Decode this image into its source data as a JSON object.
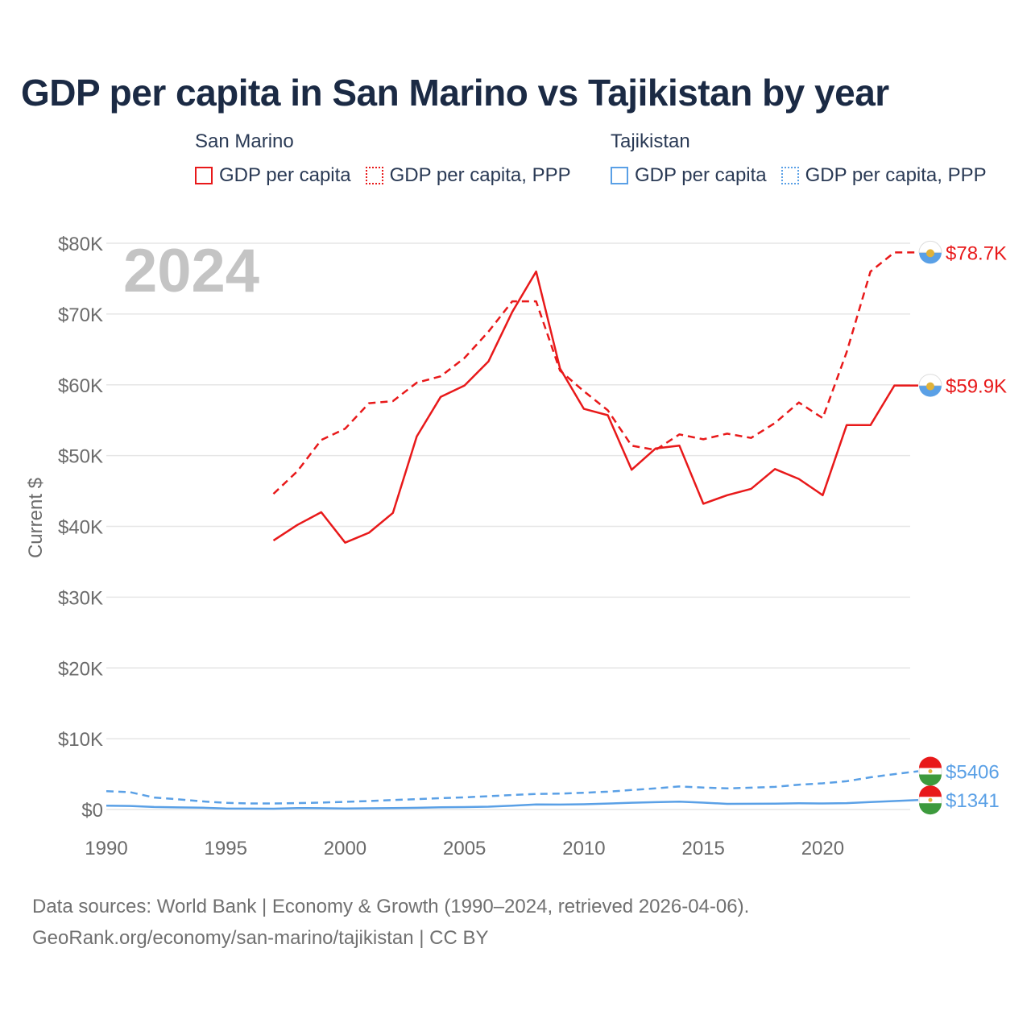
{
  "title": "GDP per capita in San Marino vs Tajikistan by year",
  "legend": {
    "groups": [
      {
        "country": "San Marino",
        "items": [
          "GDP per capita",
          "GDP per capita, PPP"
        ]
      },
      {
        "country": "Tajikistan",
        "items": [
          "GDP per capita",
          "GDP per capita, PPP"
        ]
      }
    ]
  },
  "year_label": "2024",
  "colors": {
    "san_marino": "#e8191a",
    "tajikistan": "#5aa0e6",
    "grid": "#e6e6e6",
    "axis_text": "#6b6b6b"
  },
  "chart_data": {
    "type": "line",
    "ylabel": "Current $",
    "xlabel": "",
    "xlim": [
      1990,
      2024
    ],
    "ylim": [
      0,
      80000
    ],
    "x_ticks": [
      1990,
      1995,
      2000,
      2005,
      2010,
      2015,
      2020
    ],
    "y_ticks": [
      0,
      10000,
      20000,
      30000,
      40000,
      50000,
      60000,
      70000,
      80000
    ],
    "y_tick_labels": [
      "$0",
      "$10K",
      "$20K",
      "$30K",
      "$40K",
      "$50K",
      "$60K",
      "$70K",
      "$80K"
    ],
    "series": [
      {
        "name": "San Marino GDP per capita",
        "country": "San Marino",
        "dash": false,
        "end_label": "$59.9K",
        "x": [
          1997,
          1998,
          1999,
          2000,
          2001,
          2002,
          2003,
          2004,
          2005,
          2006,
          2007,
          2008,
          2009,
          2010,
          2011,
          2012,
          2013,
          2014,
          2015,
          2016,
          2017,
          2018,
          2019,
          2020,
          2021,
          2022,
          2023,
          2024
        ],
        "values": [
          38000,
          40200,
          42000,
          37700,
          39100,
          41900,
          52700,
          58300,
          59900,
          63300,
          70300,
          76000,
          62300,
          56600,
          55700,
          48000,
          51000,
          51400,
          43200,
          44400,
          45300,
          48100,
          46700,
          44400,
          54300,
          54300,
          59900,
          59900
        ]
      },
      {
        "name": "San Marino GDP per capita, PPP",
        "country": "San Marino",
        "dash": true,
        "end_label": "$78.7K",
        "x": [
          1997,
          1998,
          1999,
          2000,
          2001,
          2002,
          2003,
          2004,
          2005,
          2006,
          2007,
          2008,
          2009,
          2010,
          2011,
          2012,
          2013,
          2014,
          2015,
          2016,
          2017,
          2018,
          2019,
          2020,
          2021,
          2022,
          2023,
          2024
        ],
        "values": [
          44600,
          47800,
          52200,
          53800,
          57400,
          57700,
          60300,
          61200,
          63800,
          67500,
          71800,
          71800,
          62000,
          59100,
          56400,
          51400,
          50800,
          53000,
          52300,
          53100,
          52500,
          54600,
          57500,
          55300,
          64600,
          76000,
          78700,
          78700
        ]
      },
      {
        "name": "Tajikistan GDP per capita",
        "country": "Tajikistan",
        "dash": false,
        "end_label": "$1341",
        "x": [
          1990,
          1991,
          1992,
          1993,
          1994,
          1995,
          1996,
          1997,
          1998,
          1999,
          2000,
          2001,
          2002,
          2003,
          2004,
          2005,
          2006,
          2007,
          2008,
          2009,
          2010,
          2011,
          2012,
          2013,
          2014,
          2015,
          2016,
          2017,
          2018,
          2019,
          2020,
          2021,
          2022,
          2023,
          2024
        ],
        "values": [
          550,
          500,
          350,
          300,
          250,
          150,
          120,
          110,
          210,
          180,
          140,
          170,
          190,
          240,
          310,
          340,
          400,
          530,
          720,
          690,
          740,
          840,
          960,
          1040,
          1110,
          970,
          800,
          810,
          830,
          880,
          850,
          900,
          1050,
          1200,
          1341
        ]
      },
      {
        "name": "Tajikistan GDP per capita, PPP",
        "country": "Tajikistan",
        "dash": true,
        "end_label": "$5406",
        "x": [
          1990,
          1991,
          1992,
          1993,
          1994,
          1995,
          1996,
          1997,
          1998,
          1999,
          2000,
          2001,
          2002,
          2003,
          2004,
          2005,
          2006,
          2007,
          2008,
          2009,
          2010,
          2011,
          2012,
          2013,
          2014,
          2015,
          2016,
          2017,
          2018,
          2019,
          2020,
          2021,
          2022,
          2023,
          2024
        ],
        "values": [
          2600,
          2450,
          1700,
          1450,
          1150,
          950,
          850,
          850,
          900,
          980,
          1080,
          1200,
          1330,
          1470,
          1600,
          1720,
          1880,
          2050,
          2200,
          2240,
          2370,
          2520,
          2750,
          2980,
          3250,
          3100,
          2980,
          3080,
          3200,
          3500,
          3700,
          4000,
          4550,
          5000,
          5406
        ]
      }
    ]
  },
  "footer": {
    "line1": "Data sources: World Bank | Economy & Growth (1990–2024, retrieved 2026-04-06).",
    "line2": "GeoRank.org/economy/san-marino/tajikistan | CC BY"
  }
}
